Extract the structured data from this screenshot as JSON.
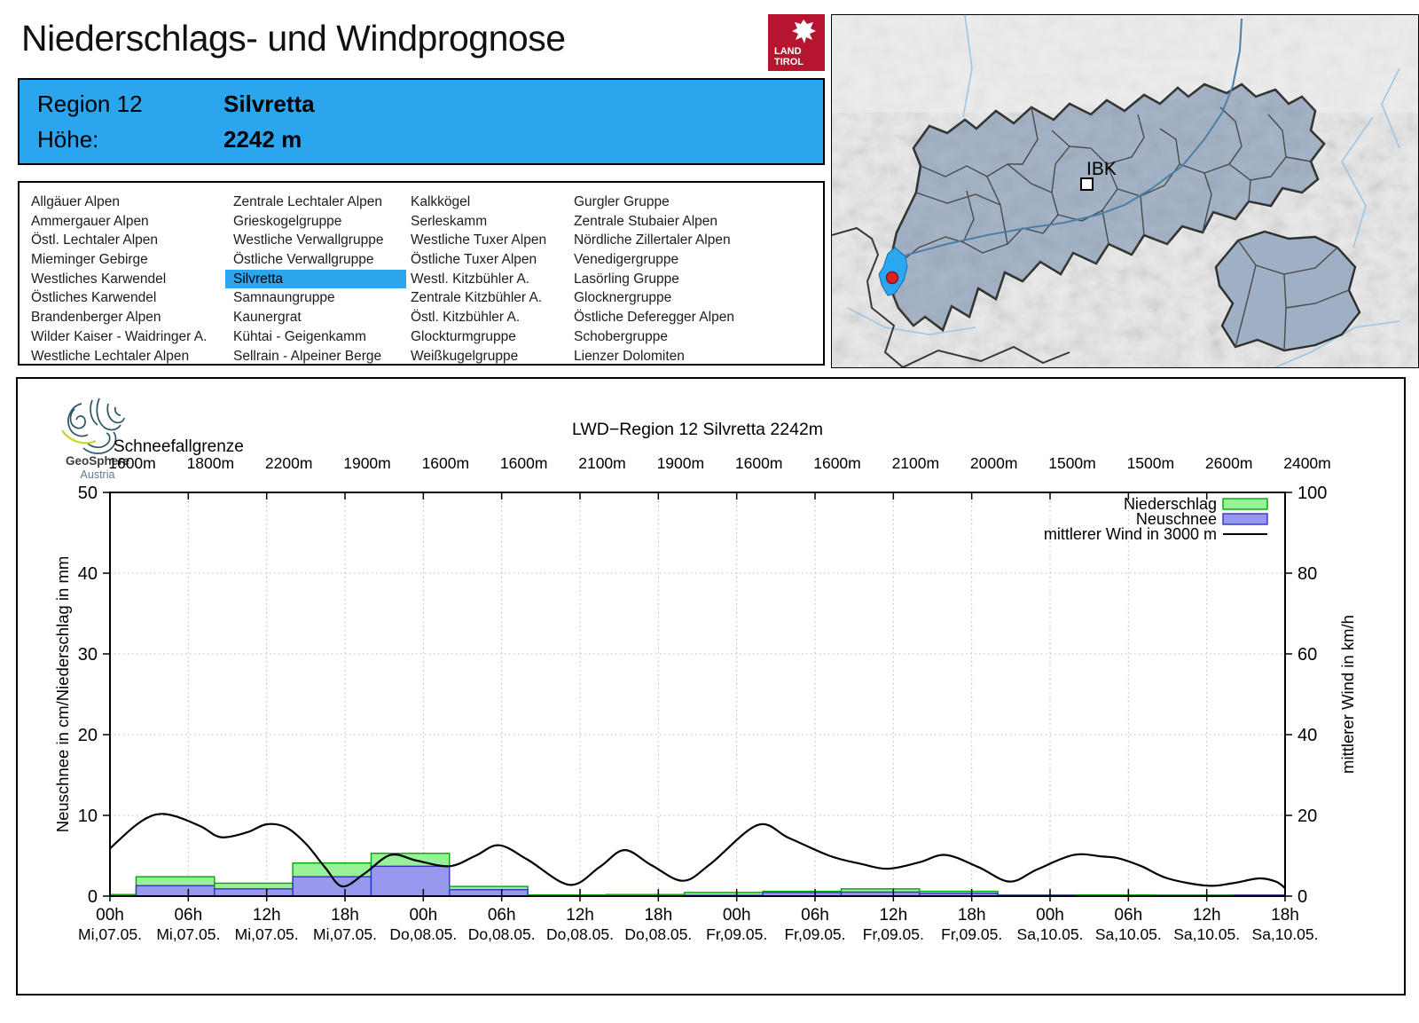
{
  "header": {
    "title": "Niederschlags- und Windprognose",
    "logo": {
      "line1": "LAND",
      "line2": "TIROL",
      "color": "#b5152e"
    }
  },
  "region_info": {
    "region_label": "Region 12",
    "region_name": "Silvretta",
    "altitude_label": "Höhe:",
    "altitude_value": "2242 m",
    "accent_color": "#2aa5ee"
  },
  "region_list": {
    "selected": "Silvretta",
    "highlight_color": "#2aa5ee",
    "columns": [
      [
        "Allgäuer Alpen",
        "Ammergauer Alpen",
        "Östl. Lechtaler Alpen",
        "Mieminger Gebirge",
        "Westliches Karwendel",
        "Östliches Karwendel",
        "Brandenberger Alpen",
        "Wilder Kaiser - Waidringer A.",
        "Westliche Lechtaler Alpen"
      ],
      [
        "Zentrale Lechtaler Alpen",
        "Grieskogelgruppe",
        "Westliche Verwallgruppe",
        "Östliche Verwallgruppe",
        "Silvretta",
        "Samnaungruppe",
        "Kaunergrat",
        "Kühtai - Geigenkamm",
        "Sellrain - Alpeiner Berge"
      ],
      [
        "Kalkkögel",
        "Serleskamm",
        "Westliche Tuxer Alpen",
        "Östliche Tuxer Alpen",
        "Westl. Kitzbühler A.",
        "Zentrale Kitzbühler A.",
        "Östl. Kitzbühler A.",
        "Glockturmgruppe",
        "Weißkugelgruppe"
      ],
      [
        "Gurgler Gruppe",
        "Zentrale Stubaier Alpen",
        "Nördliche Zillertaler Alpen",
        "Venedigergruppe",
        "Lasörling Gruppe",
        "Glocknergruppe",
        "Östliche Deferegger Alpen",
        "Schobergruppe",
        "Lienzer Dolomiten"
      ]
    ]
  },
  "map": {
    "city_label": "IBK",
    "selected_region_color": "#29a7f0",
    "marker_color": "#d82222"
  },
  "geosphere_logo": {
    "name": "GeoSphere",
    "sub": "Austria"
  },
  "chart_data": {
    "type": "composite-bar-line",
    "title": "LWD−Region 12 Silvretta 2242m",
    "snowline_label": "Schneefallgrenze",
    "snowline_values": [
      "1600m",
      "1800m",
      "2200m",
      "1900m",
      "1600m",
      "1600m",
      "2100m",
      "1900m",
      "1600m",
      "1600m",
      "2100m",
      "2000m",
      "1500m",
      "1500m",
      "2600m",
      "2400m"
    ],
    "left_axis": {
      "label": "Neuschnee in cm/Niederschlag in mm",
      "ticks": [
        0,
        10,
        20,
        30,
        40,
        50
      ],
      "range": [
        0,
        50
      ]
    },
    "right_axis": {
      "label": "mittlerer Wind in km/h",
      "ticks": [
        0,
        20,
        40,
        60,
        80,
        100
      ],
      "range": [
        0,
        100
      ]
    },
    "x_ticks": [
      {
        "time": "00h",
        "date": "Mi,07.05."
      },
      {
        "time": "06h",
        "date": "Mi,07.05."
      },
      {
        "time": "12h",
        "date": "Mi,07.05."
      },
      {
        "time": "18h",
        "date": "Mi,07.05."
      },
      {
        "time": "00h",
        "date": "Do,08.05."
      },
      {
        "time": "06h",
        "date": "Do,08.05."
      },
      {
        "time": "12h",
        "date": "Do,08.05."
      },
      {
        "time": "18h",
        "date": "Do,08.05."
      },
      {
        "time": "00h",
        "date": "Fr,09.05."
      },
      {
        "time": "06h",
        "date": "Fr,09.05."
      },
      {
        "time": "12h",
        "date": "Fr,09.05."
      },
      {
        "time": "18h",
        "date": "Fr,09.05."
      },
      {
        "time": "00h",
        "date": "Sa,10.05."
      },
      {
        "time": "06h",
        "date": "Sa,10.05."
      },
      {
        "time": "12h",
        "date": "Sa,10.05."
      },
      {
        "time": "18h",
        "date": "Sa,10.05."
      }
    ],
    "x_hours_range": [
      0,
      90
    ],
    "legend": [
      {
        "label": "Niederschlag",
        "type": "box",
        "fill": "#98f098",
        "stroke": "#00a800"
      },
      {
        "label": "Neuschnee",
        "type": "box",
        "fill": "#9898ee",
        "stroke": "#3333cc"
      },
      {
        "label": "mittlerer Wind in 3000 m",
        "type": "line",
        "stroke": "#000000"
      }
    ],
    "bars_period_hours": 6,
    "bars": [
      {
        "start": 0,
        "precip_mm": 0.2,
        "snow_cm": 0
      },
      {
        "start": 2,
        "precip_mm": 2.4,
        "snow_cm": 1.3
      },
      {
        "start": 8,
        "precip_mm": 1.6,
        "snow_cm": 0.9
      },
      {
        "start": 14,
        "precip_mm": 4.1,
        "snow_cm": 2.4
      },
      {
        "start": 20,
        "precip_mm": 5.3,
        "snow_cm": 3.7
      },
      {
        "start": 26,
        "precip_mm": 1.2,
        "snow_cm": 0.8
      },
      {
        "start": 32,
        "precip_mm": 0.15,
        "snow_cm": 0
      },
      {
        "start": 38,
        "precip_mm": 0.2,
        "snow_cm": 0
      },
      {
        "start": 44,
        "precip_mm": 0.45,
        "snow_cm": 0.1
      },
      {
        "start": 50,
        "precip_mm": 0.6,
        "snow_cm": 0.45
      },
      {
        "start": 56,
        "precip_mm": 0.9,
        "snow_cm": 0.5
      },
      {
        "start": 62,
        "precip_mm": 0.6,
        "snow_cm": 0.35
      },
      {
        "start": 68,
        "precip_mm": 0.05,
        "snow_cm": 0
      },
      {
        "start": 74,
        "precip_mm": 0.15,
        "snow_cm": 0
      },
      {
        "start": 80,
        "precip_mm": 0.1,
        "snow_cm": 0
      },
      {
        "start": 86,
        "precip_mm": 0,
        "snow_cm": 0
      }
    ],
    "wind_kmh_points": [
      [
        0,
        11.8
      ],
      [
        2,
        17.6
      ],
      [
        3.5,
        20.2
      ],
      [
        5,
        19.8
      ],
      [
        7,
        17.2
      ],
      [
        8.5,
        14.6
      ],
      [
        10.5,
        15.8
      ],
      [
        12,
        17.8
      ],
      [
        13.5,
        17.0
      ],
      [
        15,
        13.0
      ],
      [
        16.5,
        7.0
      ],
      [
        17.8,
        2.4
      ],
      [
        19.5,
        5.6
      ],
      [
        21.5,
        10.2
      ],
      [
        23.5,
        8.8
      ],
      [
        26,
        7.4
      ],
      [
        28,
        10.0
      ],
      [
        29.8,
        12.6
      ],
      [
        32,
        9.0
      ],
      [
        35.2,
        2.8
      ],
      [
        37.5,
        7.2
      ],
      [
        39.4,
        11.4
      ],
      [
        41.5,
        7.6
      ],
      [
        43.9,
        3.8
      ],
      [
        46,
        8.0
      ],
      [
        49.6,
        17.6
      ],
      [
        52,
        14.4
      ],
      [
        55.1,
        10.0
      ],
      [
        57.5,
        8.0
      ],
      [
        59.6,
        6.8
      ],
      [
        62,
        8.4
      ],
      [
        64,
        10.2
      ],
      [
        66.5,
        7.2
      ],
      [
        68.9,
        3.6
      ],
      [
        71,
        6.6
      ],
      [
        73.8,
        10.2
      ],
      [
        76,
        9.8
      ],
      [
        77.2,
        9.4
      ],
      [
        79,
        7.4
      ],
      [
        81,
        4.4
      ],
      [
        84,
        2.6
      ],
      [
        86,
        3.2
      ],
      [
        88,
        4.4
      ],
      [
        89.3,
        3.6
      ],
      [
        90,
        2.0
      ]
    ]
  }
}
